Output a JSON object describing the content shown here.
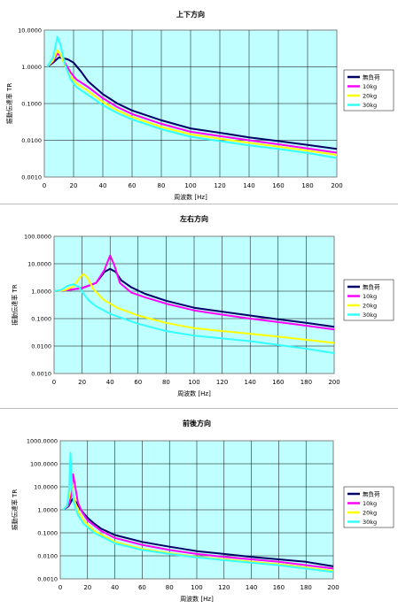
{
  "legend_labels": [
    "無負荷",
    "10kg",
    "20kg",
    "30kg"
  ],
  "colors": {
    "plot_bg": "#BFFFFF",
    "grid": "#000000",
    "series": [
      "#000066",
      "#FF00FF",
      "#FFFF00",
      "#33FFFF"
    ]
  },
  "chart_data": [
    {
      "type": "line",
      "title": "上下方向",
      "xlabel": "周波数 [Hz]",
      "ylabel": "振動伝達率 TR",
      "y_scale": "log",
      "xlim": [
        0,
        200
      ],
      "ylim": [
        0.001,
        10
      ],
      "x_ticks": [
        0,
        20,
        40,
        60,
        80,
        100,
        120,
        140,
        160,
        180,
        200
      ],
      "y_ticks": [
        0.001,
        0.01,
        0.1,
        1,
        10
      ],
      "y_tick_labels": [
        "0.0010",
        "0.0100",
        "0.1000",
        "1.0000",
        "10.0000"
      ],
      "grid": true,
      "legend": "right",
      "series": [
        {
          "name": "無負荷",
          "x": [
            2,
            6,
            10,
            13,
            16,
            20,
            25,
            30,
            40,
            50,
            60,
            80,
            100,
            120,
            140,
            160,
            180,
            200
          ],
          "y": [
            1.0,
            1.3,
            1.8,
            1.7,
            1.6,
            1.3,
            0.75,
            0.4,
            0.18,
            0.1,
            0.065,
            0.035,
            0.021,
            0.016,
            0.012,
            0.0095,
            0.0075,
            0.0058
          ]
        },
        {
          "name": "10kg",
          "x": [
            2,
            6,
            9,
            11,
            14,
            18,
            22,
            30,
            40,
            50,
            60,
            80,
            100,
            120,
            140,
            160,
            180,
            200
          ],
          "y": [
            1.0,
            1.4,
            2.3,
            2.0,
            1.3,
            0.7,
            0.45,
            0.28,
            0.14,
            0.08,
            0.052,
            0.028,
            0.017,
            0.013,
            0.01,
            0.0078,
            0.006,
            0.0046
          ]
        },
        {
          "name": "20kg",
          "x": [
            2,
            6,
            9,
            11,
            14,
            18,
            22,
            30,
            40,
            50,
            60,
            80,
            100,
            120,
            140,
            160,
            180,
            200
          ],
          "y": [
            1.0,
            1.5,
            2.8,
            2.2,
            1.1,
            0.55,
            0.35,
            0.22,
            0.11,
            0.065,
            0.043,
            0.023,
            0.0145,
            0.011,
            0.0085,
            0.0067,
            0.0052,
            0.004
          ]
        },
        {
          "name": "30kg",
          "x": [
            2,
            6,
            9,
            11,
            14,
            18,
            22,
            30,
            40,
            50,
            60,
            80,
            100,
            120,
            140,
            160,
            180,
            200
          ],
          "y": [
            1.0,
            1.8,
            6.5,
            4.0,
            1.2,
            0.45,
            0.28,
            0.17,
            0.09,
            0.055,
            0.037,
            0.02,
            0.0125,
            0.0095,
            0.0073,
            0.0058,
            0.0045,
            0.0033
          ]
        }
      ]
    },
    {
      "type": "line",
      "title": "左右方向",
      "xlabel": "周波数 [Hz]",
      "ylabel": "振動伝達率 TR",
      "y_scale": "log",
      "xlim": [
        0,
        200
      ],
      "ylim": [
        0.001,
        100
      ],
      "x_ticks": [
        0,
        20,
        40,
        60,
        80,
        100,
        120,
        140,
        160,
        180,
        200
      ],
      "y_ticks": [
        0.001,
        0.01,
        0.1,
        1,
        10,
        100
      ],
      "y_tick_labels": [
        "0.0010",
        "0.0100",
        "0.1000",
        "1.0000",
        "10.0000",
        "100.0000"
      ],
      "grid": true,
      "legend": "right",
      "series": [
        {
          "name": "無負荷",
          "x": [
            0,
            10,
            20,
            30,
            36,
            40,
            44,
            48,
            55,
            65,
            80,
            100,
            120,
            140,
            160,
            180,
            200
          ],
          "y": [
            1.0,
            1.1,
            1.3,
            2.0,
            5.0,
            6.5,
            5.0,
            2.5,
            1.4,
            0.8,
            0.45,
            0.25,
            0.18,
            0.13,
            0.095,
            0.07,
            0.05
          ]
        },
        {
          "name": "10kg",
          "x": [
            0,
            10,
            20,
            30,
            36,
            40,
            43,
            47,
            55,
            65,
            80,
            100,
            120,
            140,
            160,
            180,
            200
          ],
          "y": [
            1.0,
            1.1,
            1.3,
            2.0,
            6.0,
            20.0,
            9.0,
            2.0,
            0.9,
            0.6,
            0.35,
            0.2,
            0.14,
            0.1,
            0.075,
            0.055,
            0.04
          ]
        },
        {
          "name": "20kg",
          "x": [
            0,
            8,
            14,
            18,
            21,
            24,
            28,
            35,
            45,
            60,
            80,
            100,
            120,
            140,
            160,
            180,
            200
          ],
          "y": [
            1.0,
            1.1,
            1.5,
            3.0,
            4.2,
            3.0,
            1.2,
            0.5,
            0.25,
            0.13,
            0.07,
            0.045,
            0.035,
            0.028,
            0.022,
            0.017,
            0.013
          ]
        },
        {
          "name": "30kg",
          "x": [
            0,
            5,
            10,
            14,
            18,
            21,
            25,
            30,
            40,
            60,
            80,
            100,
            120,
            140,
            160,
            180,
            200
          ],
          "y": [
            1.0,
            1.1,
            1.6,
            1.8,
            1.4,
            0.8,
            0.45,
            0.28,
            0.15,
            0.065,
            0.035,
            0.024,
            0.019,
            0.015,
            0.011,
            0.008,
            0.0055
          ]
        }
      ]
    },
    {
      "type": "line",
      "title": "前後方向",
      "xlabel": "周波数 [Hz]",
      "ylabel": "振動伝達率 TR",
      "y_scale": "log",
      "xlim": [
        0,
        200
      ],
      "ylim": [
        0.001,
        1000
      ],
      "x_ticks": [
        0,
        20,
        40,
        60,
        80,
        100,
        120,
        140,
        160,
        180,
        200
      ],
      "y_ticks": [
        0.001,
        0.01,
        0.1,
        1,
        10,
        100,
        1000
      ],
      "y_tick_labels": [
        "0.0010",
        "0.0100",
        "0.1000",
        "1.0000",
        "10.0000",
        "100.0000",
        "1000.0000"
      ],
      "grid": true,
      "legend": "right",
      "series": [
        {
          "name": "無負荷",
          "x": [
            2,
            6,
            9,
            12,
            15,
            20,
            25,
            30,
            40,
            60,
            80,
            100,
            120,
            140,
            160,
            180,
            200
          ],
          "y": [
            1.0,
            1.4,
            3.0,
            2.0,
            1.0,
            0.45,
            0.25,
            0.15,
            0.08,
            0.04,
            0.025,
            0.016,
            0.012,
            0.009,
            0.007,
            0.0055,
            0.0035
          ]
        },
        {
          "name": "10kg",
          "x": [
            2,
            6,
            8,
            9.5,
            11,
            13,
            16,
            20,
            30,
            40,
            60,
            80,
            100,
            120,
            140,
            160,
            200
          ],
          "y": [
            1.0,
            1.5,
            4.0,
            35.0,
            10.0,
            2.0,
            0.8,
            0.35,
            0.12,
            0.06,
            0.03,
            0.018,
            0.012,
            0.009,
            0.007,
            0.0055,
            0.0028
          ]
        },
        {
          "name": "20kg",
          "x": [
            2,
            5,
            7,
            8,
            9,
            11,
            14,
            18,
            25,
            40,
            60,
            80,
            100,
            120,
            140,
            160,
            200
          ],
          "y": [
            1.0,
            1.5,
            5.0,
            40.0,
            6.0,
            2.0,
            0.7,
            0.3,
            0.12,
            0.04,
            0.02,
            0.013,
            0.009,
            0.007,
            0.0055,
            0.0043,
            0.0022
          ]
        },
        {
          "name": "30kg",
          "x": [
            2,
            5,
            6.5,
            7.5,
            8.5,
            10,
            13,
            17,
            25,
            40,
            60,
            80,
            100,
            120,
            140,
            160,
            200
          ],
          "y": [
            1.0,
            1.5,
            8.0,
            300.0,
            8.0,
            2.0,
            0.6,
            0.25,
            0.1,
            0.035,
            0.018,
            0.012,
            0.0085,
            0.0065,
            0.005,
            0.0039,
            0.002
          ]
        }
      ]
    }
  ]
}
